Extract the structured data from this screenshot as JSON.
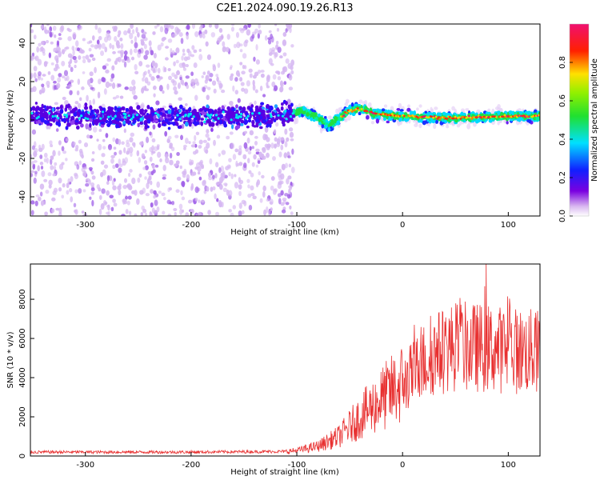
{
  "title": "C2E1.2024.090.19.26.R13",
  "chart_data": [
    {
      "type": "heatmap",
      "xlabel": "Height of straight line (km)",
      "ylabel": "Frequency (Hz)",
      "xlim": [
        -352,
        130
      ],
      "ylim": [
        -50,
        50
      ],
      "xticks": [
        -300,
        -200,
        -100,
        0,
        100
      ],
      "yticks": [
        -40,
        -20,
        0,
        20,
        40
      ],
      "colorbar": {
        "label": "Normalized spectral amplitude",
        "ticks": [
          "0.0",
          "0.2",
          "0.4",
          "0.6",
          "0.8"
        ],
        "range": [
          0,
          1
        ],
        "colormap": "rainbow (white-lavender, purple, blue, cyan, green, yellow, red, magenta)"
      },
      "ridge": [
        {
          "x": -352,
          "freq": 2
        },
        {
          "x": -250,
          "freq": 2
        },
        {
          "x": -150,
          "freq": 2
        },
        {
          "x": -105,
          "freq": 3
        },
        {
          "x": -95,
          "freq": 5
        },
        {
          "x": -80,
          "freq": 1
        },
        {
          "x": -70,
          "freq": -3
        },
        {
          "x": -60,
          "freq": 1
        },
        {
          "x": -50,
          "freq": 5
        },
        {
          "x": -40,
          "freq": 6
        },
        {
          "x": -25,
          "freq": 3
        },
        {
          "x": 0,
          "freq": 2
        },
        {
          "x": 50,
          "freq": 1
        },
        {
          "x": 100,
          "freq": 2
        },
        {
          "x": 130,
          "freq": 2
        }
      ]
    },
    {
      "type": "line",
      "xlabel": "Height of straight line (km)",
      "ylabel": "SNR (10 * v/v)",
      "xlim": [
        -352,
        130
      ],
      "ylim": [
        0,
        9800
      ],
      "xticks": [
        -300,
        -200,
        -100,
        0,
        100
      ],
      "yticks": [
        0,
        2000,
        4000,
        6000,
        8000
      ],
      "series": [
        {
          "color": "#e83030",
          "trend": [
            {
              "x": -352,
              "y": 200
            },
            {
              "x": -200,
              "y": 200
            },
            {
              "x": -110,
              "y": 230
            },
            {
              "x": -100,
              "y": 280
            },
            {
              "x": -80,
              "y": 500
            },
            {
              "x": -60,
              "y": 1000
            },
            {
              "x": -40,
              "y": 2000
            },
            {
              "x": -20,
              "y": 2900
            },
            {
              "x": 0,
              "y": 3700
            },
            {
              "x": 10,
              "y": 4200
            },
            {
              "x": 20,
              "y": 4800
            },
            {
              "x": 30,
              "y": 5200
            },
            {
              "x": 50,
              "y": 5600
            },
            {
              "x": 80,
              "y": 5500
            },
            {
              "x": 100,
              "y": 5400
            },
            {
              "x": 130,
              "y": 5300
            }
          ],
          "peak": {
            "x": 79,
            "y": 9800
          }
        }
      ]
    }
  ]
}
